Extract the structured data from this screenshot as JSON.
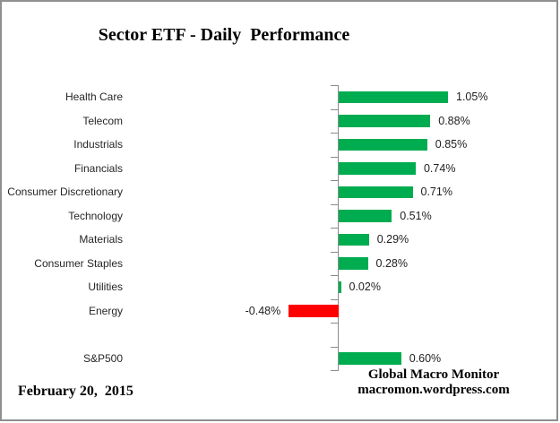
{
  "title": "Sector ETF - Daily  Performance",
  "date": "February 20,  2015",
  "footer": {
    "source": "Global Macro Monitor",
    "url": "macromon.wordpress.com"
  },
  "colors": {
    "positive": "#00AC50",
    "negative": "#FF0000",
    "axis": "#8C8C8C",
    "border": "#8F8F8F"
  },
  "chart_data": {
    "type": "bar",
    "orientation": "horizontal",
    "title": "Sector ETF - Daily  Performance",
    "categories": [
      "Health Care",
      "Telecom",
      "Industrials",
      "Financials",
      "Consumer Discretionary",
      "Technology",
      "Materials",
      "Consumer Staples",
      "Utilities",
      "Energy",
      "",
      "S&P500"
    ],
    "values": [
      1.05,
      0.88,
      0.85,
      0.74,
      0.71,
      0.51,
      0.29,
      0.28,
      0.02,
      -0.48,
      null,
      0.6
    ],
    "value_labels": [
      "1.05%",
      "0.88%",
      "0.85%",
      "0.74%",
      "0.71%",
      "0.51%",
      "0.29%",
      "0.28%",
      "0.02%",
      "-0.48%",
      "",
      "0.60%"
    ],
    "xlabel": "",
    "ylabel": "",
    "grid": false,
    "legend": false,
    "data_labels": true,
    "positive_color": "#00AC50",
    "negative_color": "#FF0000"
  }
}
